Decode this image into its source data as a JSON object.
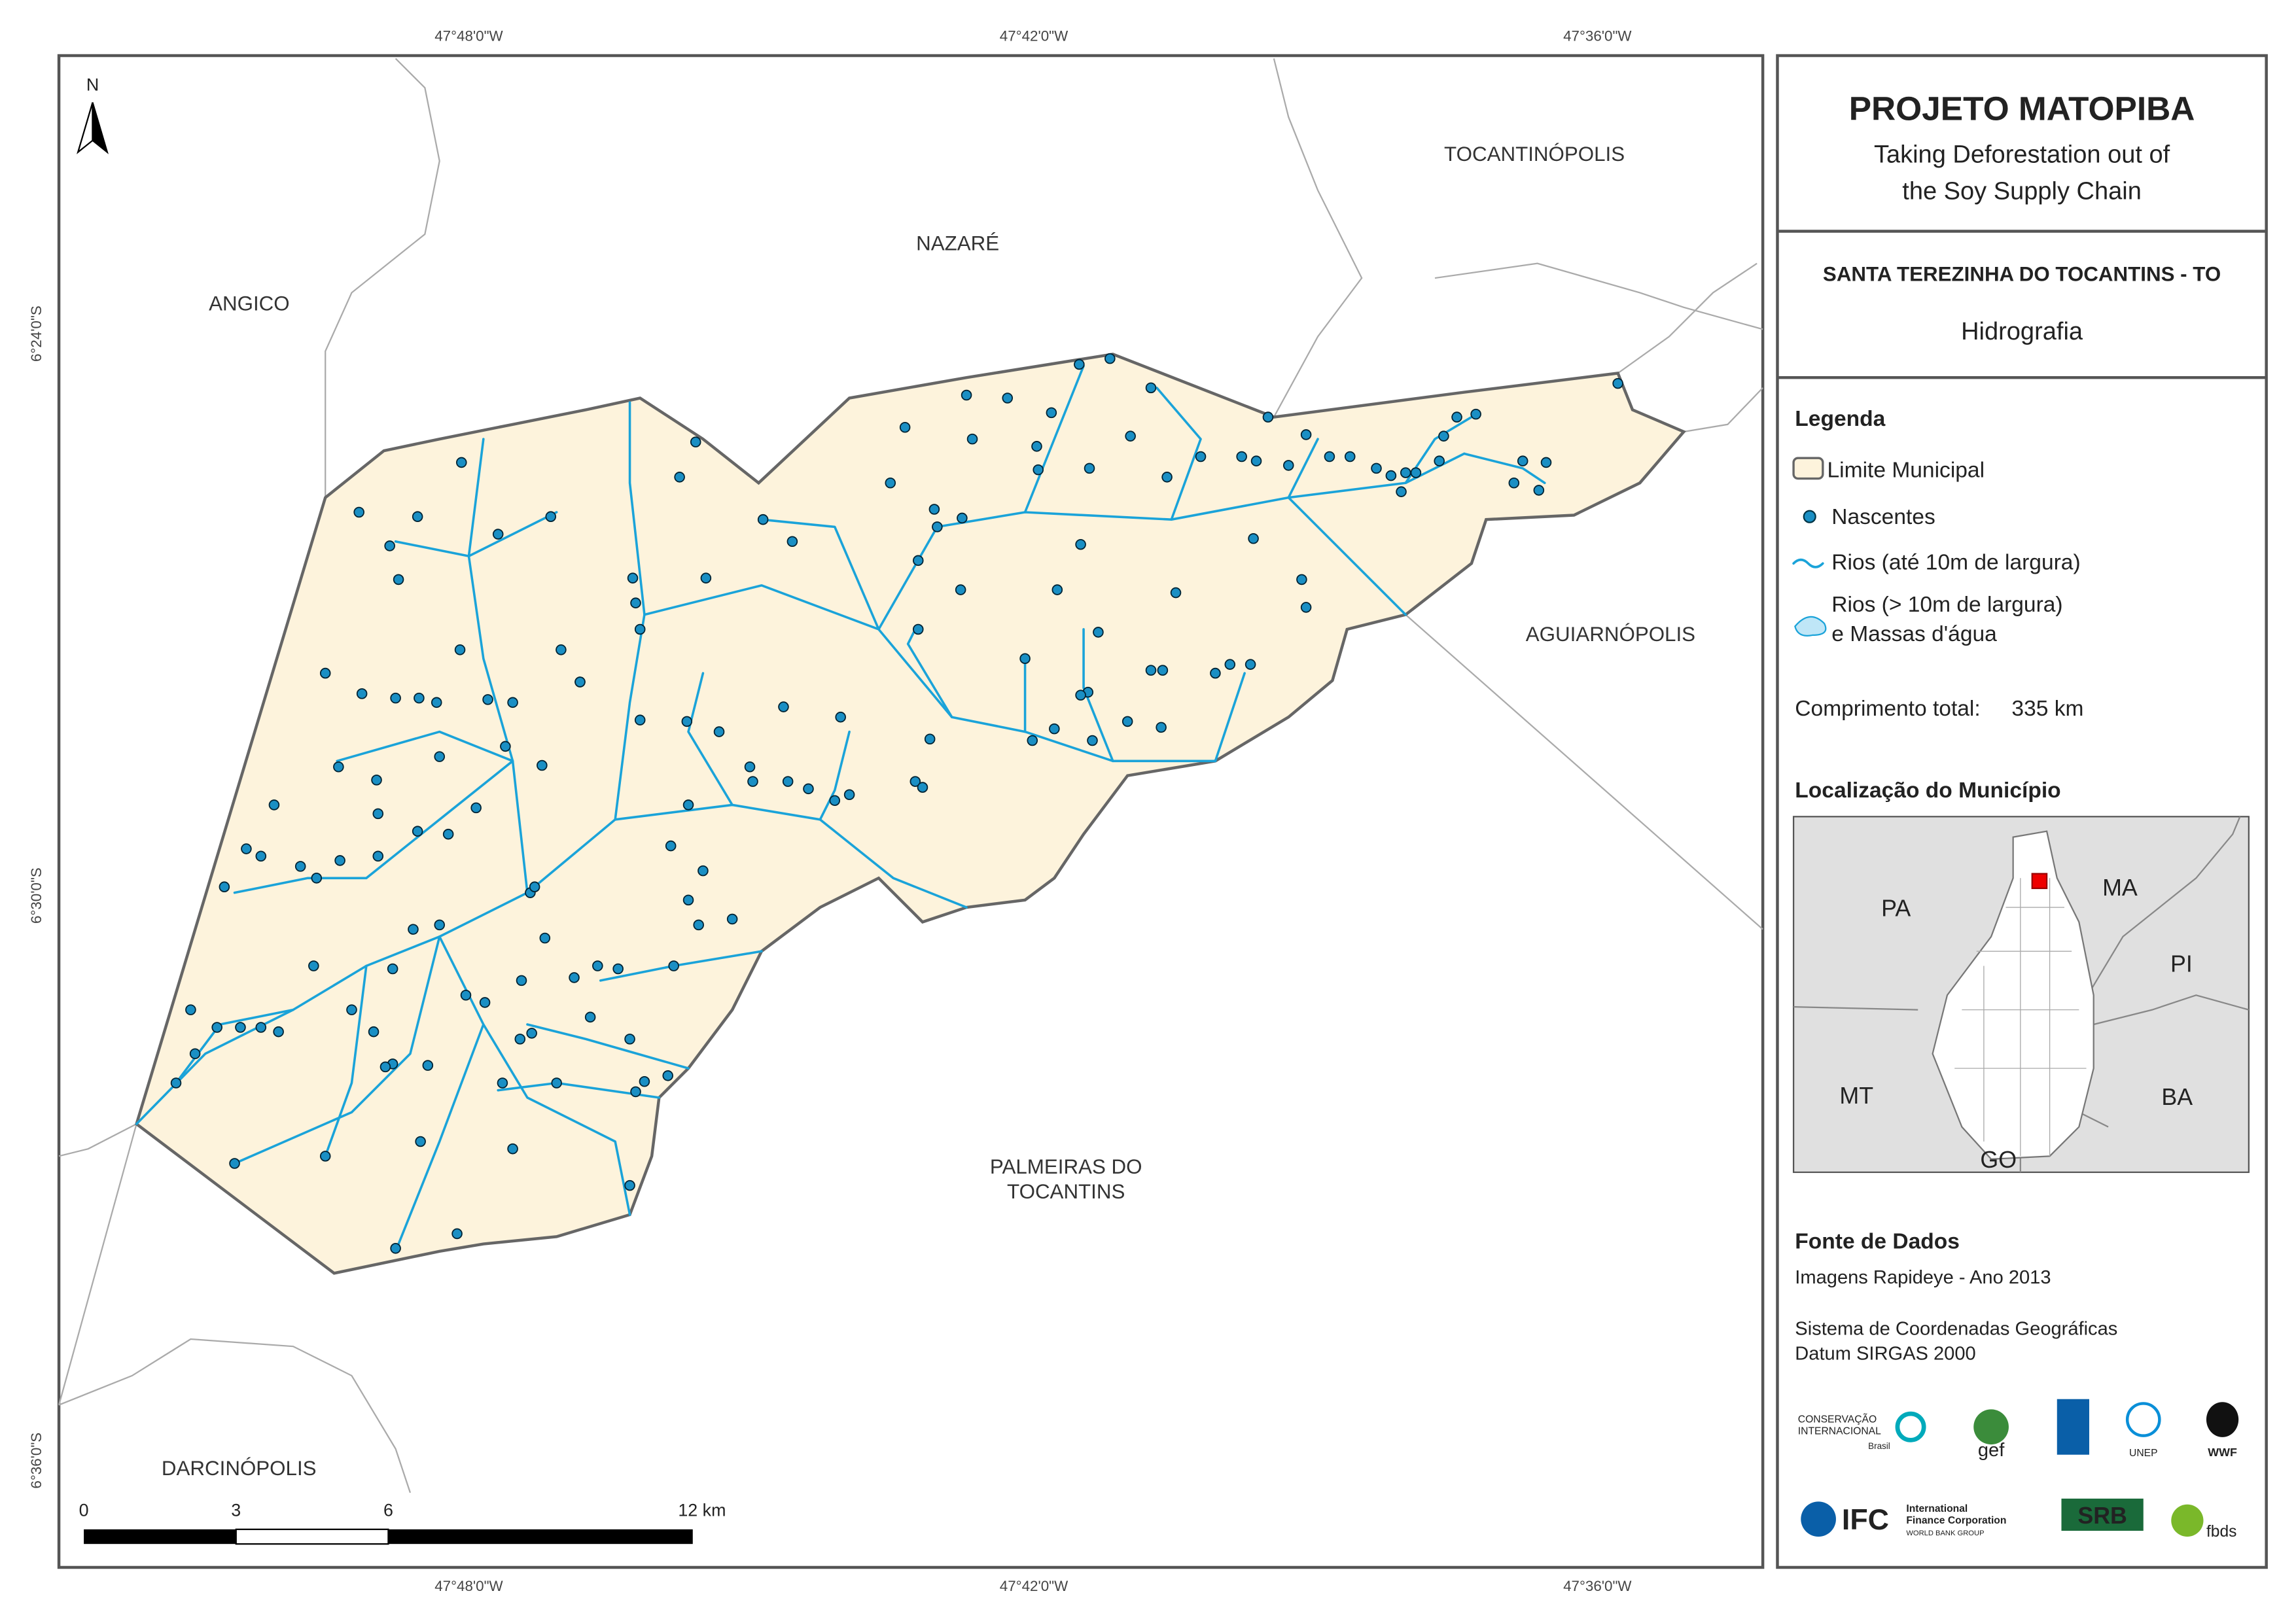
{
  "map": {
    "grid_labels": {
      "top": [
        "47°48'0\"W",
        "47°42'0\"W",
        "47°36'0\"W"
      ],
      "bottom": [
        "47°48'0\"W",
        "47°42'0\"W",
        "47°36'0\"W"
      ],
      "left": [
        "6°24'0\"S",
        "6°30'0\"S",
        "6°36'0\"S"
      ]
    },
    "north": "N",
    "place_labels": [
      [
        "TOCANTINÓPOLIS"
      ],
      [
        "NAZARÉ"
      ],
      [
        "ANGICO"
      ],
      [
        "AGUIARNÓPOLIS"
      ],
      [
        "PALMEIRAS DO",
        "TOCANTINS"
      ],
      [
        "DARCINÓPOLIS"
      ]
    ],
    "scale_labels": [
      "0",
      "3",
      "6",
      "12 km"
    ]
  },
  "panel": {
    "title": "PROJETO MATOPIBA",
    "subtitle_lines": [
      "Taking Deforestation out of",
      "the Soy Supply Chain"
    ],
    "municipality": "SANTA TEREZINHA DO TOCANTINS - TO",
    "theme": "Hidrografia",
    "legend": {
      "title": "Legenda",
      "items": [
        [
          "Limite Municipal"
        ],
        [
          "Nascentes"
        ],
        [
          "Rios (até 10m de largura)"
        ],
        [
          "Rios (> 10m de largura)",
          "e Massas d'água"
        ]
      ]
    },
    "total_length": {
      "label": "Comprimento total:",
      "value": "335 km"
    },
    "location": {
      "title": "Localização do Município",
      "labels": [
        "PA",
        "MA",
        "PI",
        "MT",
        "BA",
        "GO"
      ]
    },
    "sources": {
      "title": "Fonte de Dados",
      "lines": [
        "Imagens Rapideye - Ano 2013",
        "Sistema de Coordenadas Geográficas",
        "Datum SIRGAS 2000"
      ]
    },
    "logos": [
      "CONSERVAÇÃO",
      "INTERNACIONAL",
      "Brasil",
      "gef",
      "WWF",
      "IFC",
      "International",
      "Finance Corporation",
      "WORLD BANK GROUP",
      "SRB",
      "fbds",
      "UNEP"
    ]
  }
}
